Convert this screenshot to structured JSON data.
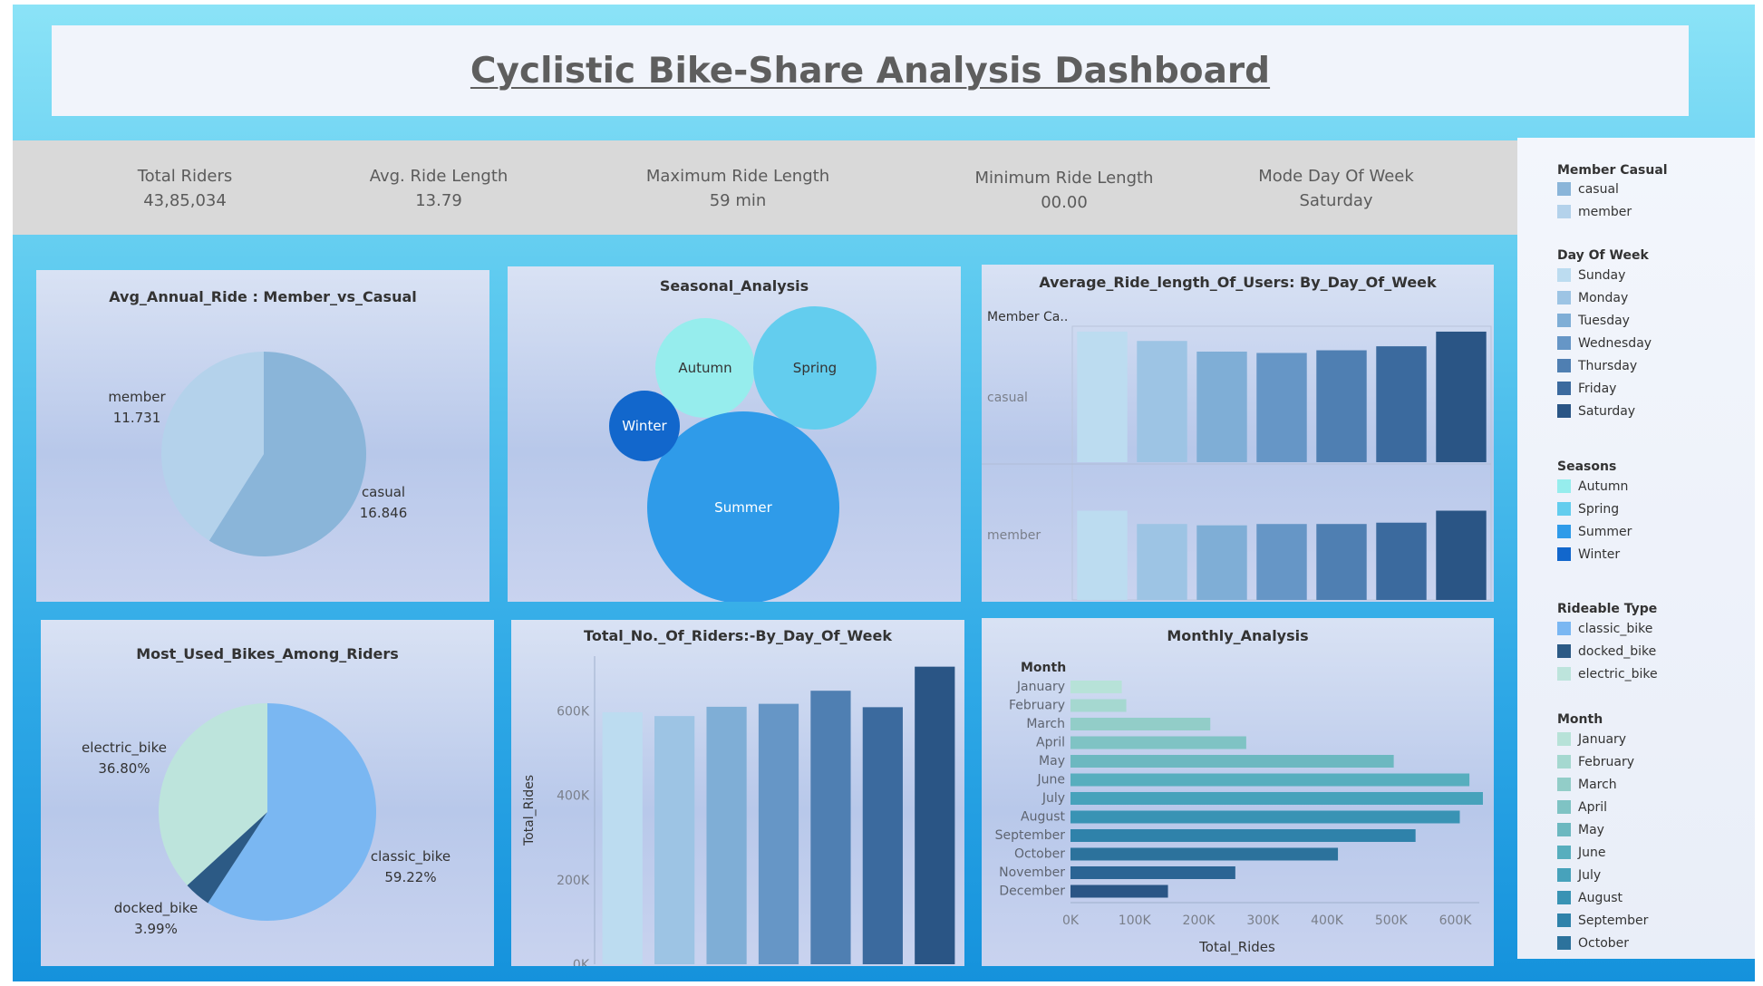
{
  "dashboard": {
    "title": "Cyclistic Bike-Share Analysis Dashboard"
  },
  "kpis": [
    {
      "label": "Total Riders",
      "value": "43,85,034"
    },
    {
      "label": "Avg. Ride Length",
      "value": "13.79"
    },
    {
      "label": "Maximum Ride Length",
      "value": "59 min"
    },
    {
      "label": "Minimum Ride Length",
      "value": "00.00"
    },
    {
      "label": "Mode Day Of Week",
      "value": "Saturday"
    }
  ],
  "legends": {
    "member_casual": {
      "title": "Member Casual",
      "items": [
        {
          "label": "casual",
          "color": "#8ab5d9"
        },
        {
          "label": "member",
          "color": "#b4d2eb"
        }
      ]
    },
    "day_of_week": {
      "title": "Day Of Week",
      "items": [
        {
          "label": "Sunday",
          "color": "#bcdcf0"
        },
        {
          "label": "Monday",
          "color": "#9dc4e4"
        },
        {
          "label": "Tuesday",
          "color": "#7faed6"
        },
        {
          "label": "Wednesday",
          "color": "#6696c6"
        },
        {
          "label": "Thursday",
          "color": "#4f7fb2"
        },
        {
          "label": "Friday",
          "color": "#3b6a9e"
        },
        {
          "label": "Saturday",
          "color": "#2a5585"
        }
      ]
    },
    "seasons": {
      "title": "Seasons",
      "items": [
        {
          "label": "Autumn",
          "color": "#96eded"
        },
        {
          "label": "Spring",
          "color": "#63cdee"
        },
        {
          "label": "Summer",
          "color": "#2f9be9"
        },
        {
          "label": "Winter",
          "color": "#1267cc"
        }
      ]
    },
    "rideable_type": {
      "title": "Rideable Type",
      "items": [
        {
          "label": "classic_bike",
          "color": "#7ab7f2"
        },
        {
          "label": "docked_bike",
          "color": "#2c5a85"
        },
        {
          "label": "electric_bike",
          "color": "#bde4dc"
        }
      ]
    },
    "month": {
      "title": "Month",
      "items": [
        {
          "label": "January",
          "color": "#b7e2d8"
        },
        {
          "label": "February",
          "color": "#a5d8d0"
        },
        {
          "label": "March",
          "color": "#92cdc8"
        },
        {
          "label": "April",
          "color": "#7fc3c4"
        },
        {
          "label": "May",
          "color": "#6cb8c0"
        },
        {
          "label": "June",
          "color": "#57aebe"
        },
        {
          "label": "July",
          "color": "#47a2bb"
        },
        {
          "label": "August",
          "color": "#3993b4"
        },
        {
          "label": "September",
          "color": "#2f82aa"
        },
        {
          "label": "October",
          "color": "#2c729c"
        }
      ]
    }
  },
  "chart_data": [
    {
      "type": "pie",
      "title": "Avg_Annual_Ride : Member_vs_Casual",
      "slices": [
        {
          "label": "casual",
          "value": 16.846,
          "display": "16.846",
          "color": "#8ab5d9"
        },
        {
          "label": "member",
          "value": 11.731,
          "display": "11.731",
          "color": "#b4d2eb"
        }
      ]
    },
    {
      "type": "bubble",
      "title": "Seasonal_Analysis",
      "bubbles": [
        {
          "label": "Autumn",
          "color": "#96eded",
          "size_rank": 3
        },
        {
          "label": "Spring",
          "color": "#63cdee",
          "size_rank": 2
        },
        {
          "label": "Summer",
          "color": "#2f9be9",
          "size_rank": 1
        },
        {
          "label": "Winter",
          "color": "#1267cc",
          "size_rank": 4
        }
      ]
    },
    {
      "type": "bar",
      "title": "Average_Ride_length_Of_Users: By_Day_Of_Week",
      "row_header": "Member Ca..",
      "categories": [
        "Sunday",
        "Monday",
        "Tuesday",
        "Wednesday",
        "Thursday",
        "Friday",
        "Saturday"
      ],
      "series": [
        {
          "name": "casual",
          "values": [
            0.98,
            0.91,
            0.83,
            0.82,
            0.84,
            0.87,
            0.98
          ]
        },
        {
          "name": "member",
          "values": [
            0.67,
            0.57,
            0.56,
            0.57,
            0.57,
            0.58,
            0.67
          ]
        }
      ]
    },
    {
      "type": "pie",
      "title": "Most_Used_Bikes_Among_Riders",
      "slices": [
        {
          "label": "classic_bike",
          "value": 59.22,
          "display": "59.22%",
          "color": "#7ab7f2"
        },
        {
          "label": "docked_bike",
          "value": 3.99,
          "display": "3.99%",
          "color": "#2c5a85"
        },
        {
          "label": "electric_bike",
          "value": 36.8,
          "display": "36.80%",
          "color": "#bde4dc"
        }
      ]
    },
    {
      "type": "bar",
      "title": "Total_No._Of_Riders:-By_Day_Of_Week",
      "ylabel": "Total_Rides",
      "categories": [
        "Sunday",
        "Monday",
        "Tuesday",
        "Wednesday",
        "Thursday",
        "Friday",
        "Saturday"
      ],
      "values": [
        597000,
        588000,
        610000,
        617000,
        648000,
        609000,
        705000
      ],
      "ylim": [
        0,
        730000
      ],
      "yticks": [
        0,
        200000,
        400000,
        600000
      ],
      "ytick_labels": [
        "0K",
        "200K",
        "400K",
        "600K"
      ]
    },
    {
      "type": "bar",
      "orientation": "horizontal",
      "title": "Monthly_Analysis",
      "row_header": "Month",
      "xlabel": "Total_Rides",
      "categories": [
        "January",
        "February",
        "March",
        "April",
        "May",
        "June",
        "July",
        "August",
        "September",
        "October",
        "November",
        "December"
      ],
      "values": [
        80000,
        87000,
        218000,
        274000,
        504000,
        622000,
        643000,
        607000,
        538000,
        417000,
        257000,
        152000
      ],
      "xlim": [
        0,
        660000
      ],
      "xticks": [
        0,
        100000,
        200000,
        300000,
        400000,
        500000,
        600000
      ],
      "xtick_labels": [
        "0K",
        "100K",
        "200K",
        "300K",
        "400K",
        "500K",
        "600K"
      ]
    }
  ]
}
